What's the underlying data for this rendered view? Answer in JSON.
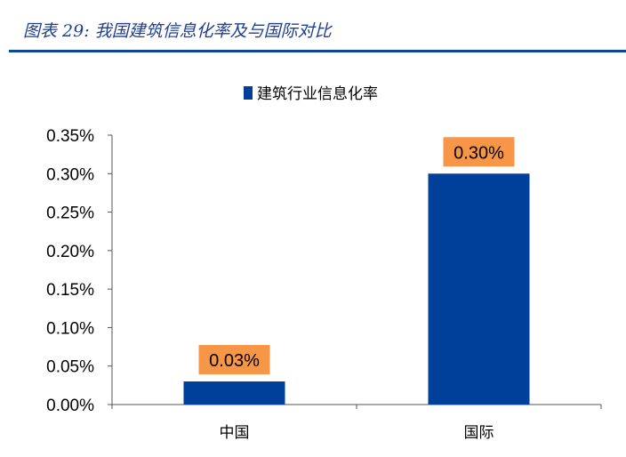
{
  "title": "图表 29:  我国建筑信息化率及与国际对比",
  "colors": {
    "bar": "#003f9a",
    "label_bg": "#f79646",
    "title": "#1f3f8f"
  },
  "chart_data": {
    "type": "bar",
    "categories": [
      "中国",
      "国际"
    ],
    "series": [
      {
        "name": "建筑行业信息化率",
        "values": [
          0.03,
          0.3
        ]
      }
    ],
    "data_labels": [
      "0.03%",
      "0.30%"
    ],
    "ylim": [
      0,
      0.35
    ],
    "yticks": [
      "0.00%",
      "0.05%",
      "0.10%",
      "0.15%",
      "0.20%",
      "0.25%",
      "0.30%",
      "0.35%"
    ],
    "legend": "top",
    "grid": false
  }
}
